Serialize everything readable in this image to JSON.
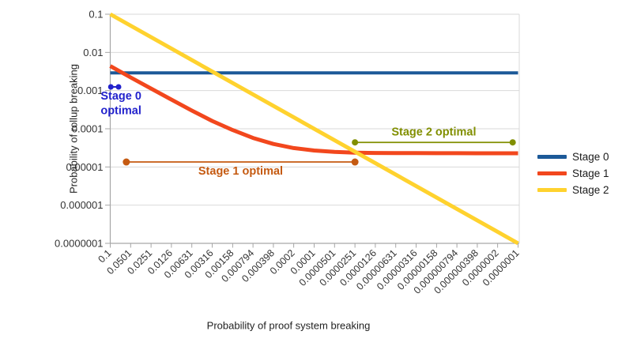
{
  "chart_data": {
    "type": "line",
    "x_scale": "log",
    "y_scale": "log",
    "xlabel": "Probability of proof system breaking",
    "ylabel": "Probability of rollup breaking",
    "x_range": [
      0.1,
      1e-07
    ],
    "y_range": [
      0.1,
      1e-07
    ],
    "grid": "horizontal",
    "legend_position": "right",
    "x_ticks": [
      "0.1",
      "0.0501",
      "0.0251",
      "0.0126",
      "0.00631",
      "0.00316",
      "0.00158",
      "0.000794",
      "0.000398",
      "0.0002",
      "0.0001",
      "0.0000501",
      "0.0000251",
      "0.0000126",
      "0.00000631",
      "0.00000316",
      "0.00000158",
      "0.000000794",
      "0.000000398",
      "0.0000002",
      "0.0000001"
    ],
    "y_ticks": [
      "0.1",
      "0.01",
      "0.001",
      "0.0001",
      "0.00001",
      "0.000001",
      "0.0000001"
    ],
    "series": [
      {
        "name": "Stage 0",
        "color": "#1c5998",
        "width": 4,
        "points": [
          [
            0.1,
            0.0029
          ],
          [
            1e-07,
            0.0029
          ]
        ]
      },
      {
        "name": "Stage 1",
        "color": "#f2471d",
        "width": 5,
        "points": [
          [
            0.1,
            0.0044
          ],
          [
            0.0501,
            0.00221
          ],
          [
            0.0251,
            0.00113
          ],
          [
            0.0126,
            0.00058
          ],
          [
            0.00631,
            0.0003
          ],
          [
            0.00316,
            0.00016
          ],
          [
            0.00158,
            9.25e-05
          ],
          [
            0.000794,
            5.75e-05
          ],
          [
            0.000398,
            4e-05
          ],
          [
            0.0002,
            3.13e-05
          ],
          [
            0.0001,
            2.7e-05
          ],
          [
            5.01e-05,
            2.48e-05
          ],
          [
            2.51e-05,
            2.37e-05
          ],
          [
            1.26e-05,
            2.33e-05
          ],
          [
            6.31e-06,
            2.31e-05
          ],
          [
            3.16e-06,
            2.3e-05
          ],
          [
            1.58e-06,
            2.29e-05
          ],
          [
            7.94e-07,
            2.29e-05
          ],
          [
            3.98e-07,
            2.28e-05
          ],
          [
            2e-07,
            2.28e-05
          ],
          [
            1e-07,
            2.28e-05
          ]
        ]
      },
      {
        "name": "Stage 2",
        "color": "#ffd22e",
        "width": 5,
        "points": [
          [
            0.1,
            0.1
          ],
          [
            1e-07,
            1e-07
          ]
        ]
      }
    ],
    "annotations": [
      {
        "name": "stage0-optimal",
        "label_lines": [
          "Stage 0",
          "optimal"
        ],
        "color": "#2222cc",
        "x_from": 0.098,
        "x_to": 0.0755,
        "y": 0.00125,
        "dot_r": 3.5,
        "line_w": 2,
        "label_pos": "below",
        "label_dx": 8
      },
      {
        "name": "stage1-optimal",
        "label_lines": [
          "Stage 1 optimal"
        ],
        "color": "#c55a11",
        "x_from": 0.058,
        "x_to": 2.51e-05,
        "y": 1.35e-05,
        "dot_r": 4.5,
        "line_w": 1.8,
        "label_pos": "below",
        "label_dx": 0
      },
      {
        "name": "stage2-optimal",
        "label_lines": [
          "Stage 2 optimal"
        ],
        "color": "#818f00",
        "x_from": 2.51e-05,
        "x_to": 1.2e-07,
        "y": 4.4e-05,
        "dot_r": 4,
        "line_w": 1.8,
        "label_pos": "above",
        "label_dx": 0
      }
    ],
    "colors": {
      "grid": "#d9d9d9",
      "axis": "#a6a6a6",
      "tick_text": "#333333"
    }
  }
}
